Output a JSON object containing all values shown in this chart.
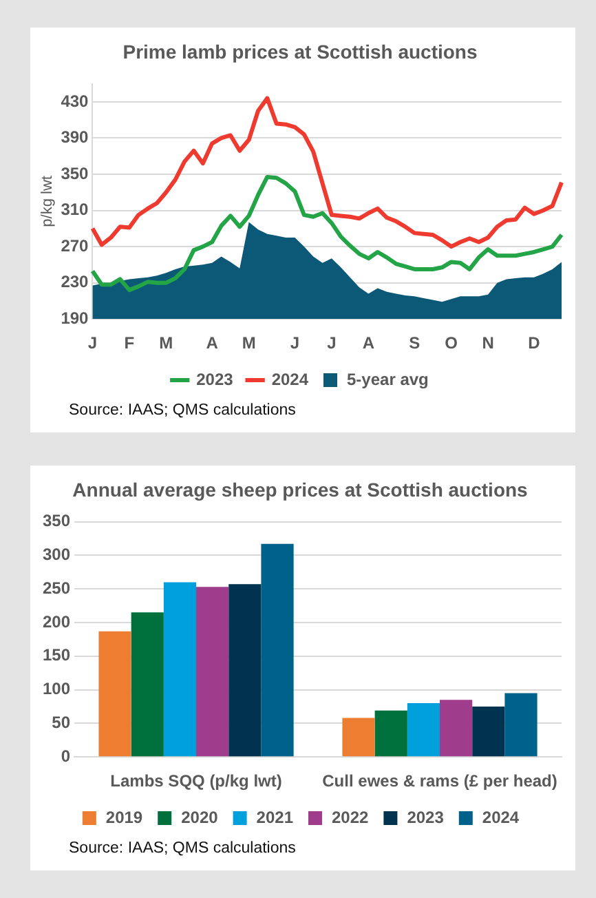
{
  "chart_data": [
    {
      "type": "line",
      "title": "Prime lamb prices at Scottish auctions",
      "ylabel": "p/kg lwt",
      "categories": [
        "J",
        null,
        null,
        null,
        "F",
        null,
        null,
        null,
        "M",
        null,
        null,
        null,
        null,
        "A",
        null,
        null,
        null,
        "M",
        null,
        null,
        null,
        null,
        "J",
        null,
        null,
        null,
        "J",
        null,
        null,
        null,
        "A",
        null,
        null,
        null,
        null,
        "S",
        null,
        null,
        null,
        "O",
        null,
        null,
        null,
        "N",
        null,
        null,
        null,
        null,
        "D",
        null,
        null,
        null
      ],
      "ylim": [
        190,
        450
      ],
      "yticks": [
        190,
        230,
        270,
        310,
        350,
        390,
        430
      ],
      "grid": "y",
      "legend": "bottom",
      "series": [
        {
          "name": "5-year avg",
          "type": "area",
          "color": "#0b5877",
          "values": [
            227,
            229,
            230,
            232,
            234,
            235,
            236,
            238,
            241,
            245,
            248,
            249,
            250,
            252,
            259,
            253,
            246,
            297,
            289,
            284,
            282,
            280,
            280,
            270,
            259,
            252,
            257,
            247,
            236,
            225,
            218,
            224,
            220,
            218,
            216,
            215,
            213,
            211,
            209,
            212,
            215,
            215,
            215,
            217,
            230,
            234,
            235,
            236,
            236,
            240,
            245,
            253
          ]
        },
        {
          "name": "2023",
          "color": "#22a447",
          "values": [
            243,
            228,
            228,
            234,
            222,
            226,
            231,
            230,
            230,
            235,
            245,
            266,
            270,
            275,
            293,
            304,
            292,
            304,
            327,
            347,
            346,
            340,
            331,
            305,
            303,
            307,
            296,
            281,
            271,
            262,
            257,
            264,
            258,
            251,
            248,
            245,
            245,
            245,
            247,
            253,
            252,
            245,
            258,
            267,
            260,
            260,
            260,
            262,
            264,
            267,
            270,
            283
          ]
        },
        {
          "name": "2024",
          "color": "#ee3a2f",
          "values": [
            290,
            272,
            280,
            292,
            291,
            305,
            312,
            318,
            330,
            344,
            364,
            376,
            362,
            384,
            390,
            393,
            376,
            388,
            420,
            434,
            406,
            405,
            402,
            394,
            375,
            340,
            305,
            304,
            303,
            301,
            307,
            312,
            302,
            298,
            292,
            285,
            284,
            283,
            277,
            270,
            275,
            279,
            275,
            280,
            292,
            299,
            300,
            313,
            306,
            310,
            315,
            341
          ]
        }
      ],
      "annotations": [
        "Source: IAAS; QMS calculations"
      ]
    },
    {
      "type": "bar",
      "title": "Annual average sheep prices at Scottish auctions",
      "categories": [
        "Lambs SQQ (p/kg lwt)",
        "Cull ewes & rams (£ per head)"
      ],
      "ylim": [
        0,
        350
      ],
      "yticks": [
        0,
        50,
        100,
        150,
        200,
        250,
        300,
        350
      ],
      "grid": "y",
      "legend": "bottom",
      "series": [
        {
          "name": "2019",
          "color": "#ed7d31",
          "values": [
            187,
            58
          ]
        },
        {
          "name": "2020",
          "color": "#00703c",
          "values": [
            215,
            69
          ]
        },
        {
          "name": "2021",
          "color": "#00a0dc",
          "values": [
            260,
            80
          ]
        },
        {
          "name": "2022",
          "color": "#a03c8c",
          "values": [
            253,
            85
          ]
        },
        {
          "name": "2023",
          "color": "#003350",
          "values": [
            257,
            75
          ]
        },
        {
          "name": "2024",
          "color": "#00628a",
          "values": [
            317,
            95
          ]
        }
      ],
      "annotations": [
        "Source: IAAS; QMS calculations"
      ]
    }
  ]
}
